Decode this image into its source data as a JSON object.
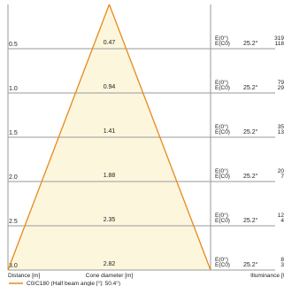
{
  "chart_data": {
    "type": "area",
    "footer": {
      "xlabel": "Distance [m]",
      "center_label": "Cone diameter [m]",
      "right_label": "Illuminance [l"
    },
    "legend": {
      "label": "C0/C180 (Half beam angle [°]: 50.4°)",
      "color": "#e8891b"
    },
    "colors": {
      "cone_fill": "#fcf6dd",
      "cone_line": "#e8891b",
      "grid": "#9a9a9a"
    },
    "rows": [
      {
        "distance": "0.5",
        "diameter": "0.47",
        "e0_label": "E(0°)",
        "ec0_label": "E(C0)",
        "angle": "25.2°",
        "e0": "319",
        "ec0": "118"
      },
      {
        "distance": "1.0",
        "diameter": "0.94",
        "e0_label": "E(0°)",
        "ec0_label": "E(C0)",
        "angle": "25.2°",
        "e0": "79",
        "ec0": "29"
      },
      {
        "distance": "1.5",
        "diameter": "1.41",
        "e0_label": "E(0°)",
        "ec0_label": "E(C0)",
        "angle": "25.2°",
        "e0": "35",
        "ec0": "13"
      },
      {
        "distance": "2.0",
        "diameter": "1.88",
        "e0_label": "E(0°)",
        "ec0_label": "E(C0)",
        "angle": "25.2°",
        "e0": "20",
        "ec0": "7"
      },
      {
        "distance": "2.5",
        "diameter": "2.35",
        "e0_label": "E(0°)",
        "ec0_label": "E(C0)",
        "angle": "25.2°",
        "e0": "12",
        "ec0": "4"
      },
      {
        "distance": "3.0",
        "diameter": "2.82",
        "e0_label": "E(0°)",
        "ec0_label": "E(C0)",
        "angle": "25.2°",
        "e0": "8",
        "ec0": "3"
      }
    ],
    "max_distance": 3.0,
    "max_diameter": 2.82
  }
}
